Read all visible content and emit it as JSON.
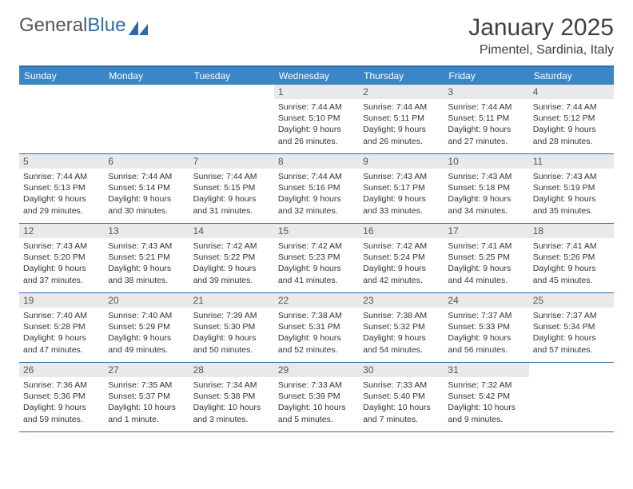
{
  "brand": {
    "name1": "General",
    "name2": "Blue"
  },
  "title": "January 2025",
  "location": "Pimentel, Sardinia, Italy",
  "colors": {
    "header_bg": "#3a86c8",
    "border": "#2d6aa8",
    "daynum_bg": "#e9e9e9",
    "text": "#333333"
  },
  "day_headers": [
    "Sunday",
    "Monday",
    "Tuesday",
    "Wednesday",
    "Thursday",
    "Friday",
    "Saturday"
  ],
  "weeks": [
    [
      null,
      null,
      null,
      {
        "n": "1",
        "sr": "7:44 AM",
        "ss": "5:10 PM",
        "dl": "9 hours and 26 minutes."
      },
      {
        "n": "2",
        "sr": "7:44 AM",
        "ss": "5:11 PM",
        "dl": "9 hours and 26 minutes."
      },
      {
        "n": "3",
        "sr": "7:44 AM",
        "ss": "5:11 PM",
        "dl": "9 hours and 27 minutes."
      },
      {
        "n": "4",
        "sr": "7:44 AM",
        "ss": "5:12 PM",
        "dl": "9 hours and 28 minutes."
      }
    ],
    [
      {
        "n": "5",
        "sr": "7:44 AM",
        "ss": "5:13 PM",
        "dl": "9 hours and 29 minutes."
      },
      {
        "n": "6",
        "sr": "7:44 AM",
        "ss": "5:14 PM",
        "dl": "9 hours and 30 minutes."
      },
      {
        "n": "7",
        "sr": "7:44 AM",
        "ss": "5:15 PM",
        "dl": "9 hours and 31 minutes."
      },
      {
        "n": "8",
        "sr": "7:44 AM",
        "ss": "5:16 PM",
        "dl": "9 hours and 32 minutes."
      },
      {
        "n": "9",
        "sr": "7:43 AM",
        "ss": "5:17 PM",
        "dl": "9 hours and 33 minutes."
      },
      {
        "n": "10",
        "sr": "7:43 AM",
        "ss": "5:18 PM",
        "dl": "9 hours and 34 minutes."
      },
      {
        "n": "11",
        "sr": "7:43 AM",
        "ss": "5:19 PM",
        "dl": "9 hours and 35 minutes."
      }
    ],
    [
      {
        "n": "12",
        "sr": "7:43 AM",
        "ss": "5:20 PM",
        "dl": "9 hours and 37 minutes."
      },
      {
        "n": "13",
        "sr": "7:43 AM",
        "ss": "5:21 PM",
        "dl": "9 hours and 38 minutes."
      },
      {
        "n": "14",
        "sr": "7:42 AM",
        "ss": "5:22 PM",
        "dl": "9 hours and 39 minutes."
      },
      {
        "n": "15",
        "sr": "7:42 AM",
        "ss": "5:23 PM",
        "dl": "9 hours and 41 minutes."
      },
      {
        "n": "16",
        "sr": "7:42 AM",
        "ss": "5:24 PM",
        "dl": "9 hours and 42 minutes."
      },
      {
        "n": "17",
        "sr": "7:41 AM",
        "ss": "5:25 PM",
        "dl": "9 hours and 44 minutes."
      },
      {
        "n": "18",
        "sr": "7:41 AM",
        "ss": "5:26 PM",
        "dl": "9 hours and 45 minutes."
      }
    ],
    [
      {
        "n": "19",
        "sr": "7:40 AM",
        "ss": "5:28 PM",
        "dl": "9 hours and 47 minutes."
      },
      {
        "n": "20",
        "sr": "7:40 AM",
        "ss": "5:29 PM",
        "dl": "9 hours and 49 minutes."
      },
      {
        "n": "21",
        "sr": "7:39 AM",
        "ss": "5:30 PM",
        "dl": "9 hours and 50 minutes."
      },
      {
        "n": "22",
        "sr": "7:38 AM",
        "ss": "5:31 PM",
        "dl": "9 hours and 52 minutes."
      },
      {
        "n": "23",
        "sr": "7:38 AM",
        "ss": "5:32 PM",
        "dl": "9 hours and 54 minutes."
      },
      {
        "n": "24",
        "sr": "7:37 AM",
        "ss": "5:33 PM",
        "dl": "9 hours and 56 minutes."
      },
      {
        "n": "25",
        "sr": "7:37 AM",
        "ss": "5:34 PM",
        "dl": "9 hours and 57 minutes."
      }
    ],
    [
      {
        "n": "26",
        "sr": "7:36 AM",
        "ss": "5:36 PM",
        "dl": "9 hours and 59 minutes."
      },
      {
        "n": "27",
        "sr": "7:35 AM",
        "ss": "5:37 PM",
        "dl": "10 hours and 1 minute."
      },
      {
        "n": "28",
        "sr": "7:34 AM",
        "ss": "5:38 PM",
        "dl": "10 hours and 3 minutes."
      },
      {
        "n": "29",
        "sr": "7:33 AM",
        "ss": "5:39 PM",
        "dl": "10 hours and 5 minutes."
      },
      {
        "n": "30",
        "sr": "7:33 AM",
        "ss": "5:40 PM",
        "dl": "10 hours and 7 minutes."
      },
      {
        "n": "31",
        "sr": "7:32 AM",
        "ss": "5:42 PM",
        "dl": "10 hours and 9 minutes."
      },
      null
    ]
  ],
  "labels": {
    "sunrise": "Sunrise:",
    "sunset": "Sunset:",
    "daylight": "Daylight:"
  }
}
